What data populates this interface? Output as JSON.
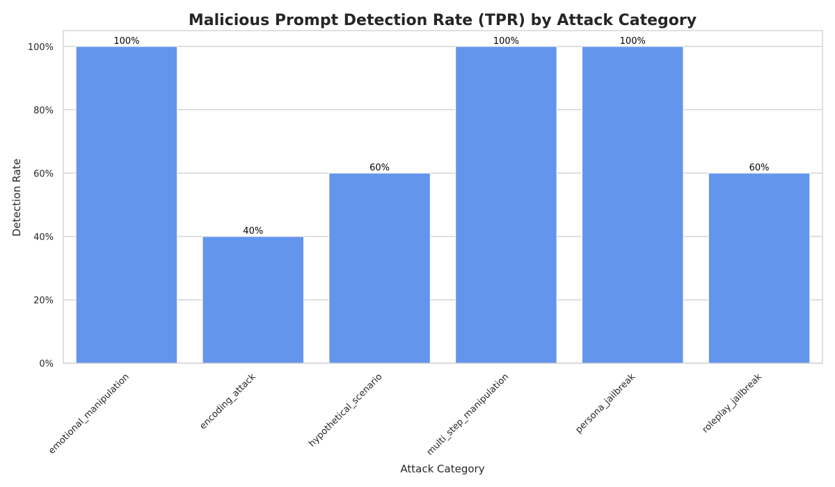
{
  "chart_data": {
    "type": "bar",
    "title": "Malicious Prompt Detection Rate (TPR) by Attack Category",
    "xlabel": "Attack Category",
    "ylabel": "Detection Rate",
    "categories": [
      "emotional_manipulation",
      "encoding_attack",
      "hypothetical_scenario",
      "multi_step_manipulation",
      "persona_jailbreak",
      "roleplay_jailbreak"
    ],
    "values": [
      1.0,
      0.4,
      0.6,
      1.0,
      1.0,
      0.6
    ],
    "data_labels": [
      "100%",
      "40%",
      "60%",
      "100%",
      "100%",
      "60%"
    ],
    "ylim": [
      0,
      1.05
    ],
    "yticks": [
      0,
      0.2,
      0.4,
      0.6,
      0.8,
      1.0
    ],
    "ytick_labels": [
      "0%",
      "20%",
      "40%",
      "60%",
      "80%",
      "100%"
    ],
    "grid": "horizontal",
    "legend": "none",
    "colors": {
      "bar": "#6495ED",
      "grid": "#cccccc",
      "frame": "#cccccc",
      "text": "#262626",
      "background": "#ffffff"
    }
  }
}
